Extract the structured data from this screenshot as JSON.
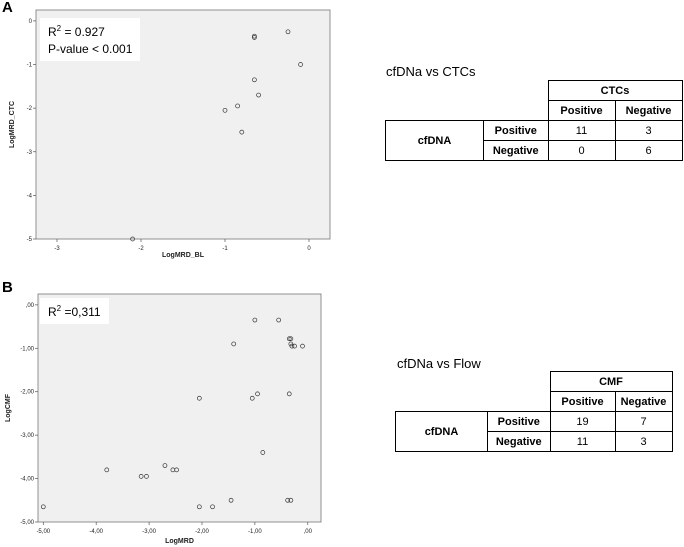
{
  "panels": [
    {
      "letter": "A",
      "stats": {
        "r2_prefix": "R",
        "r2_sup": "2",
        "r2_value": " = 0.927",
        "pvalue": "P-value < 0.001"
      },
      "table": {
        "title": "cfDNa vs CTCs",
        "group_header": "CTCs",
        "col_headers": [
          "Positive",
          "Negative"
        ],
        "row_group": "cfDNA",
        "rows": [
          {
            "label": "Positive",
            "values": [
              "11",
              "3"
            ]
          },
          {
            "label": "Negative",
            "values": [
              "0",
              "6"
            ]
          }
        ]
      }
    },
    {
      "letter": "B",
      "stats": {
        "r2_prefix": "R",
        "r2_sup": "2",
        "r2_value": " =0,311"
      },
      "table": {
        "title": "cfDNa vs Flow",
        "group_header": "CMF",
        "col_headers": [
          "Positive",
          "Negative"
        ],
        "row_group": "cfDNA",
        "rows": [
          {
            "label": "Positive",
            "values": [
              "19",
              "7"
            ]
          },
          {
            "label": "Negative",
            "values": [
              "11",
              "3"
            ]
          }
        ]
      }
    }
  ],
  "chart_data": [
    {
      "type": "scatter",
      "xlabel": "LogMRD_BL",
      "ylabel": "LogMRD_CTC",
      "xlim": [
        -3.25,
        0.25
      ],
      "ylim": [
        -5,
        0.25
      ],
      "xticks": [
        -3,
        -2,
        -1,
        0
      ],
      "xticklabels": [
        "-3",
        "-2",
        "-1",
        "0"
      ],
      "yticks": [
        0,
        -1,
        -2,
        -3,
        -4,
        -5
      ],
      "yticklabels": [
        "0",
        "-1",
        "-2",
        "-3",
        "-4",
        "-5"
      ],
      "grid": false,
      "background": "#f0f0f0",
      "x": [
        -0.25,
        -0.65,
        -0.65,
        -0.1,
        -0.65,
        -0.6,
        -0.85,
        -1.0,
        -0.8,
        -2.1
      ],
      "y": [
        -0.25,
        -0.35,
        -0.38,
        -1.0,
        -1.35,
        -1.7,
        -1.95,
        -2.05,
        -2.55,
        -5.0
      ]
    },
    {
      "type": "scatter",
      "xlabel": "LogMRD",
      "ylabel": "LogCMF",
      "xlim": [
        -5.1,
        0.25
      ],
      "ylim": [
        -5.0,
        0.25
      ],
      "xticks": [
        -5,
        -4,
        -3,
        -2,
        -1,
        0
      ],
      "xticklabels": [
        "-5,00",
        "-4,00",
        "-3,00",
        "-2,00",
        "-1,00",
        ",00"
      ],
      "yticks": [
        0,
        -1,
        -2,
        -3,
        -4,
        -5
      ],
      "yticklabels": [
        ",00",
        "-1,00",
        "-2,00",
        "-3,00",
        "-4,00",
        "-5,00"
      ],
      "grid": false,
      "background": "#f0f0f0",
      "x": [
        -1.0,
        -0.55,
        -0.35,
        -0.32,
        -0.32,
        -0.3,
        -0.1,
        -0.25,
        -1.4,
        -2.05,
        -1.05,
        -0.95,
        -0.35,
        -0.85,
        -3.8,
        -3.15,
        -3.05,
        -2.7,
        -2.55,
        -2.48,
        -1.45,
        -2.05,
        -1.8,
        -0.38,
        -0.32,
        -5.0
      ],
      "y": [
        -0.35,
        -0.35,
        -0.78,
        -0.78,
        -0.9,
        -0.95,
        -0.95,
        -0.95,
        -0.9,
        -2.15,
        -2.15,
        -2.05,
        -2.05,
        -3.4,
        -3.8,
        -3.95,
        -3.95,
        -3.7,
        -3.8,
        -3.8,
        -4.5,
        -4.65,
        -4.65,
        -4.5,
        -4.5,
        -4.65
      ]
    }
  ]
}
